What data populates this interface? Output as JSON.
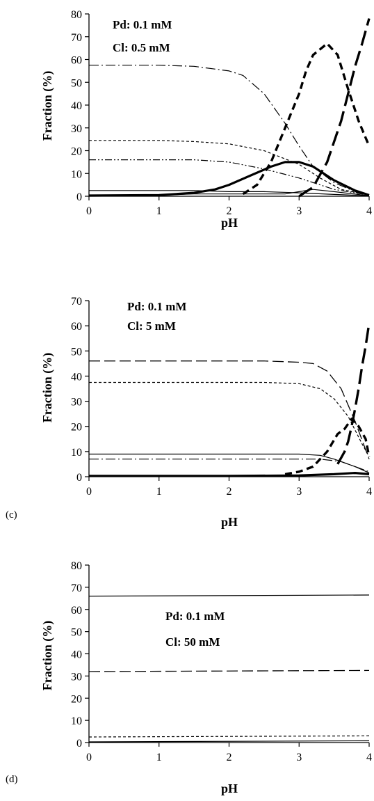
{
  "chart_data": [
    {
      "type": "line",
      "panel_label": "",
      "xlabel": "pH",
      "ylabel": "Fraction (%)",
      "xlim": [
        0,
        4
      ],
      "ylim": [
        0,
        80
      ],
      "x_ticks": [
        "0",
        "1",
        "2",
        "3",
        "4"
      ],
      "y_ticks": [
        "0",
        "10",
        "20",
        "30",
        "40",
        "50",
        "60",
        "70",
        "80"
      ],
      "annotations": [
        "Pd:  0.1  mM",
        "Cl:  0.5  mM"
      ],
      "grid": false,
      "series": [
        {
          "style": "dashdot-thin",
          "x": [
            0,
            1,
            1.5,
            2,
            2.2,
            2.5,
            2.8,
            3.0,
            3.2,
            3.5,
            3.8,
            4.0
          ],
          "y": [
            57.5,
            57.5,
            57,
            55,
            53,
            45,
            32,
            22,
            13,
            6,
            2,
            0.5
          ]
        },
        {
          "style": "short-dash-thin",
          "x": [
            0,
            1,
            1.5,
            2,
            2.5,
            3.0,
            3.3,
            3.6,
            4.0
          ],
          "y": [
            24.5,
            24.5,
            24,
            23,
            20,
            14,
            8,
            3,
            0.5
          ]
        },
        {
          "style": "dashdotdot-thin",
          "x": [
            0,
            1,
            1.5,
            2,
            2.5,
            3.0,
            3.5,
            4.0
          ],
          "y": [
            16,
            16,
            16,
            15,
            12,
            8,
            3,
            0.5
          ]
        },
        {
          "style": "solid-thin",
          "x": [
            0,
            1,
            1.5,
            2,
            2.5,
            3.0,
            3.5,
            4.0
          ],
          "y": [
            2.5,
            2.5,
            2.5,
            2,
            2,
            1.5,
            0.8,
            0.2
          ]
        },
        {
          "style": "solid-thin",
          "x": [
            0,
            1,
            1.5,
            2,
            2.5,
            2.8,
            3.0,
            3.2,
            3.5,
            4.0
          ],
          "y": [
            0.5,
            0.5,
            1,
            1,
            1,
            1,
            2,
            3,
            2,
            0.2
          ]
        },
        {
          "style": "solid-thick",
          "x": [
            0,
            1,
            1.5,
            1.8,
            2.0,
            2.3,
            2.6,
            2.8,
            3.0,
            3.2,
            3.5,
            3.8,
            4.0
          ],
          "y": [
            0.3,
            0.5,
            1.5,
            3,
            5,
            9,
            13,
            15,
            15,
            13,
            7,
            2.5,
            0.5
          ]
        },
        {
          "style": "dashed-thick",
          "x": [
            2.2,
            2.4,
            2.6,
            2.8,
            3.0,
            3.1,
            3.2,
            3.4,
            3.55,
            3.7,
            3.85,
            4.0
          ],
          "y": [
            1,
            5,
            15,
            30,
            45,
            55,
            62,
            67,
            62,
            47,
            33,
            22
          ]
        },
        {
          "style": "longdash-thick",
          "x": [
            3.0,
            3.2,
            3.4,
            3.6,
            3.7,
            3.8,
            3.9,
            4.0
          ],
          "y": [
            0,
            4,
            15,
            33,
            45,
            57,
            67,
            78
          ]
        }
      ]
    },
    {
      "type": "line",
      "panel_label": "(c)",
      "xlabel": "pH",
      "ylabel": "Fraction (%)",
      "xlim": [
        0,
        4
      ],
      "ylim": [
        0,
        70
      ],
      "x_ticks": [
        "0",
        "1",
        "2",
        "3",
        "4"
      ],
      "y_ticks": [
        "0",
        "10",
        "20",
        "30",
        "40",
        "50",
        "60",
        "70"
      ],
      "annotations": [
        "Pd:  0.1  mM",
        "Cl:  5  mM"
      ],
      "grid": false,
      "series": [
        {
          "style": "longdash-thin",
          "x": [
            0,
            1,
            2,
            2.5,
            3.0,
            3.2,
            3.4,
            3.6,
            3.8,
            4.0
          ],
          "y": [
            46,
            46,
            46,
            46,
            45.5,
            45,
            42,
            35,
            22,
            7
          ]
        },
        {
          "style": "short-dash-thin",
          "x": [
            0,
            1,
            2,
            2.5,
            3.0,
            3.3,
            3.5,
            3.7,
            3.9,
            4.0
          ],
          "y": [
            37.5,
            37.5,
            37.5,
            37.5,
            37,
            35,
            31,
            24,
            13,
            8
          ]
        },
        {
          "style": "solid-thin",
          "x": [
            0,
            1,
            2,
            3.0,
            3.3,
            3.5,
            3.8,
            4.0
          ],
          "y": [
            9,
            9,
            9,
            9,
            8.5,
            7,
            4,
            1.5
          ]
        },
        {
          "style": "dashdot-thin",
          "x": [
            0,
            1,
            2,
            3.0,
            3.3,
            3.6,
            3.8,
            4.0
          ],
          "y": [
            7,
            7,
            7,
            7,
            7,
            6,
            4,
            2
          ]
        },
        {
          "style": "solid-thick",
          "x": [
            0,
            1,
            2,
            3.0,
            3.5,
            3.8,
            4.0
          ],
          "y": [
            0.3,
            0.3,
            0.3,
            0.5,
            1,
            1.5,
            1
          ]
        },
        {
          "style": "dashed-thick",
          "x": [
            2.8,
            3.0,
            3.2,
            3.4,
            3.55,
            3.65,
            3.75,
            3.85,
            3.95,
            4.0
          ],
          "y": [
            1,
            2,
            4,
            10,
            17,
            19,
            23,
            20,
            15,
            8
          ]
        },
        {
          "style": "longdash-thick",
          "x": [
            3.55,
            3.65,
            3.7,
            3.75,
            3.8,
            3.85,
            3.9,
            3.95,
            4.0
          ],
          "y": [
            5,
            10,
            14,
            20,
            27,
            35,
            44,
            52,
            61
          ]
        }
      ]
    },
    {
      "type": "line",
      "panel_label": "(d)",
      "xlabel": "pH",
      "ylabel": "Fraction (%)",
      "xlim": [
        0,
        4
      ],
      "ylim": [
        0,
        80
      ],
      "x_ticks": [
        "0",
        "1",
        "2",
        "3",
        "4"
      ],
      "y_ticks": [
        "0",
        "10",
        "20",
        "30",
        "40",
        "50",
        "60",
        "70",
        "80"
      ],
      "annotations": [
        "Pd:  0.1  mM",
        "Cl:  50  mM"
      ],
      "grid": false,
      "series": [
        {
          "style": "solid-thin",
          "x": [
            0,
            4
          ],
          "y": [
            66,
            66.5
          ]
        },
        {
          "style": "longdash-thin",
          "x": [
            0,
            4
          ],
          "y": [
            32,
            32.5
          ]
        },
        {
          "style": "short-dash-thin",
          "x": [
            0,
            4
          ],
          "y": [
            2.5,
            3
          ]
        },
        {
          "style": "solid-thin",
          "x": [
            0,
            4
          ],
          "y": [
            0.3,
            0.8
          ]
        }
      ]
    }
  ]
}
